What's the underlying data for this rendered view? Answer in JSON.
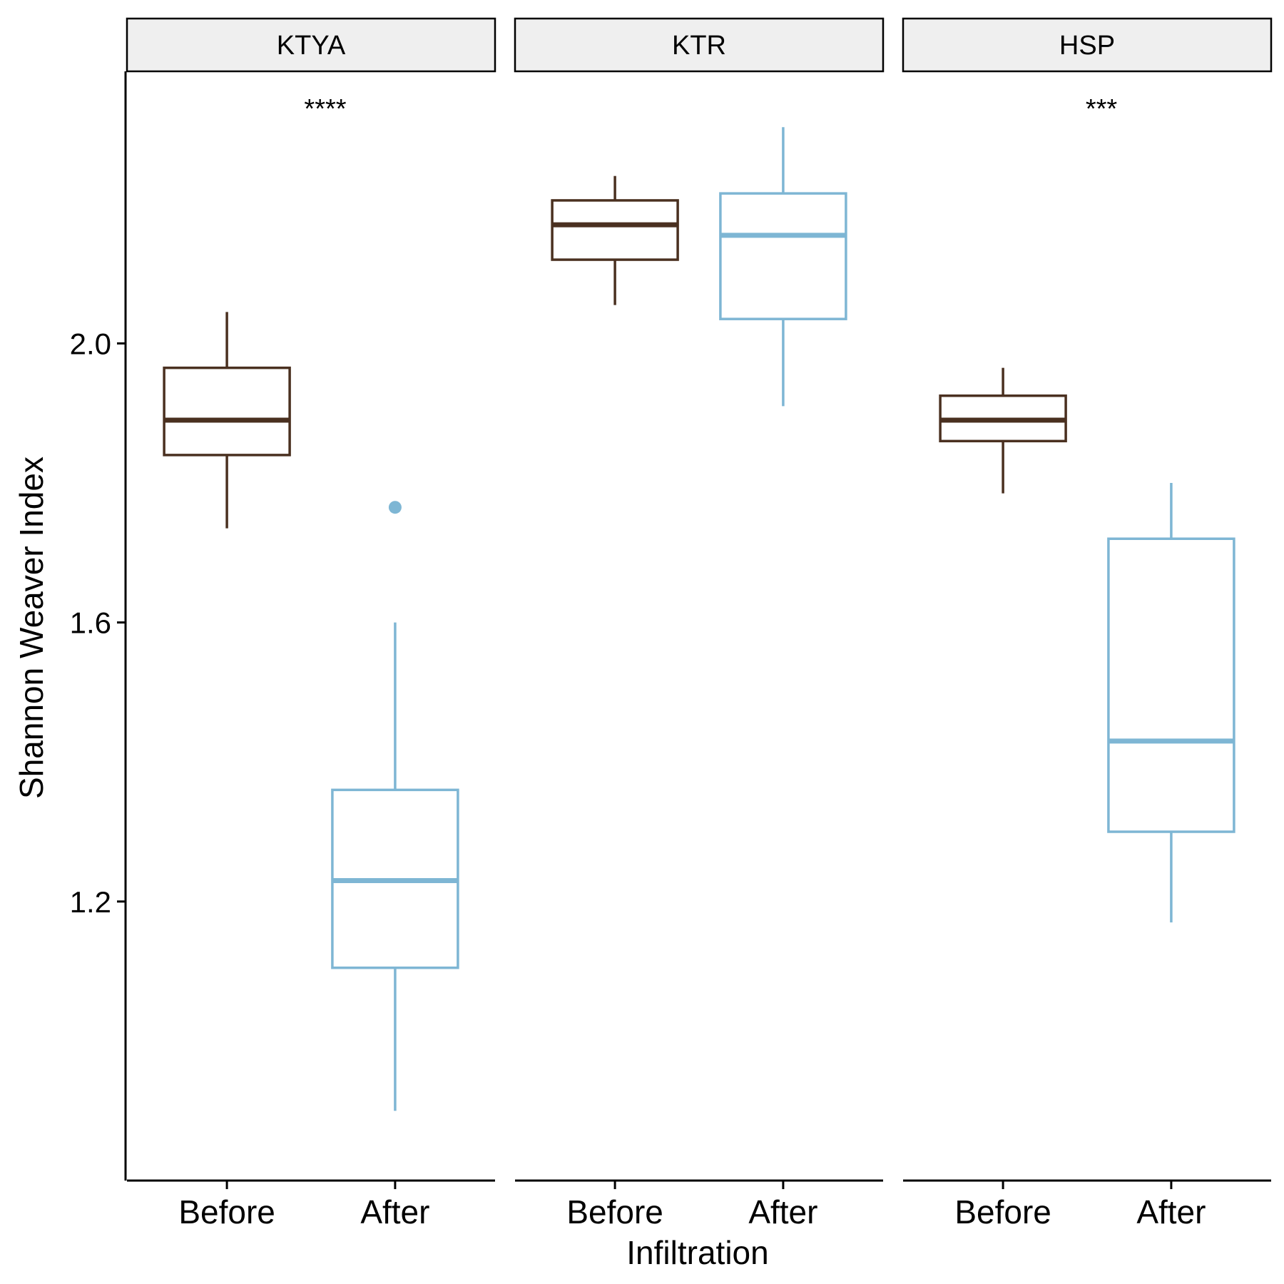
{
  "chart_data": {
    "type": "boxplot",
    "facets": [
      {
        "label": "KTYA",
        "significance": "****",
        "boxes": [
          {
            "category": "Before",
            "whisker_low": 1.735,
            "q1": 1.84,
            "median": 1.89,
            "q3": 1.965,
            "whisker_high": 2.045,
            "outliers": []
          },
          {
            "category": "After",
            "whisker_low": 0.9,
            "q1": 1.105,
            "median": 1.23,
            "q3": 1.36,
            "whisker_high": 1.6,
            "outliers": [
              1.765
            ]
          }
        ]
      },
      {
        "label": "KTR",
        "significance": "",
        "boxes": [
          {
            "category": "Before",
            "whisker_low": 2.055,
            "q1": 2.12,
            "median": 2.17,
            "q3": 2.205,
            "whisker_high": 2.24,
            "outliers": []
          },
          {
            "category": "After",
            "whisker_low": 1.91,
            "q1": 2.035,
            "median": 2.155,
            "q3": 2.215,
            "whisker_high": 2.31,
            "outliers": []
          }
        ]
      },
      {
        "label": "HSP",
        "significance": "***",
        "boxes": [
          {
            "category": "Before",
            "whisker_low": 1.785,
            "q1": 1.86,
            "median": 1.89,
            "q3": 1.925,
            "whisker_high": 1.965,
            "outliers": []
          },
          {
            "category": "After",
            "whisker_low": 1.17,
            "q1": 1.3,
            "median": 1.43,
            "q3": 1.72,
            "whisker_high": 1.8,
            "outliers": []
          }
        ]
      }
    ],
    "categories": [
      "Before",
      "After"
    ],
    "category_colors": {
      "Before": "#4a3020",
      "After": "#7eb6d4"
    },
    "xlabel": "Infiltration",
    "ylabel": "Shannon Weaver Index",
    "ylim": [
      0.8,
      2.39
    ],
    "yticks": [
      1.2,
      1.6,
      2.0
    ],
    "ytick_labels": [
      "1.2",
      "1.6",
      "2.0"
    ],
    "grid": false,
    "legend": "none"
  }
}
